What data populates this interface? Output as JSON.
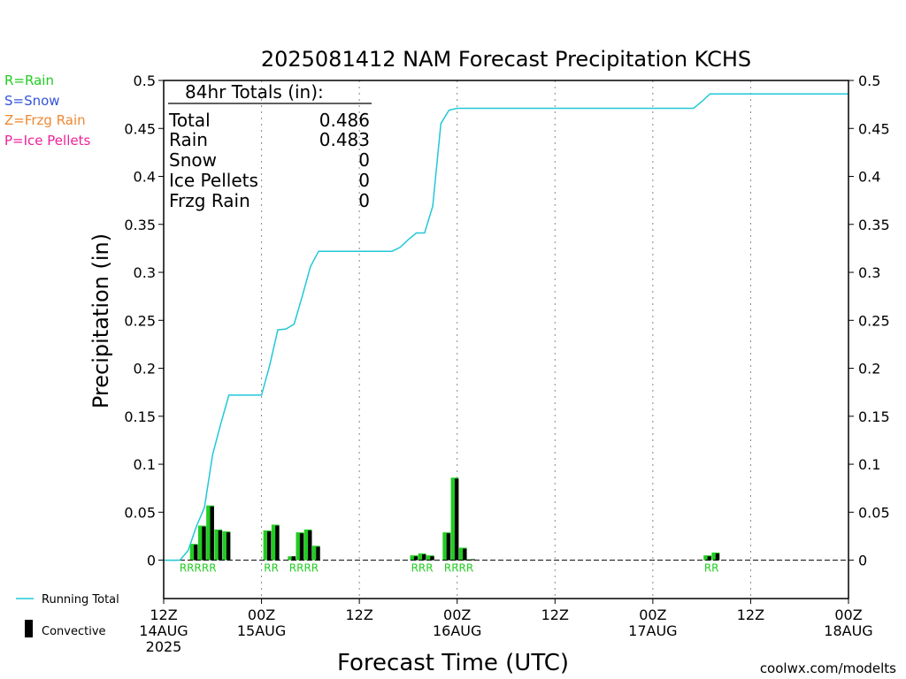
{
  "chart_data": {
    "type": "bar",
    "title": "2025081412 NAM Forecast Precipitation KCHS",
    "xlabel": "Forecast Time (UTC)",
    "ylabel": "Precipitation (in)",
    "ylim": [
      -0.04,
      0.5
    ],
    "y_ticks": [
      0,
      0.05,
      0.1,
      0.15,
      0.2,
      0.25,
      0.3,
      0.35,
      0.4,
      0.45,
      0.5
    ],
    "xlim_hours": [
      0,
      84
    ],
    "x_ticks": [
      {
        "hour": 0,
        "line1": "12Z",
        "line2": "14AUG",
        "line3": "2025"
      },
      {
        "hour": 12,
        "line1": "00Z",
        "line2": "15AUG",
        "line3": ""
      },
      {
        "hour": 24,
        "line1": "12Z",
        "line2": "",
        "line3": ""
      },
      {
        "hour": 36,
        "line1": "00Z",
        "line2": "16AUG",
        "line3": ""
      },
      {
        "hour": 48,
        "line1": "12Z",
        "line2": "",
        "line3": ""
      },
      {
        "hour": 60,
        "line1": "00Z",
        "line2": "17AUG",
        "line3": ""
      },
      {
        "hour": 72,
        "line1": "12Z",
        "line2": "",
        "line3": ""
      },
      {
        "hour": 84,
        "line1": "00Z",
        "line2": "18AUG",
        "line3": ""
      }
    ],
    "bars": [
      {
        "hour": 3.7,
        "total": 0.017,
        "convective": 0.016
      },
      {
        "hour": 4.7,
        "total": 0.036,
        "convective": 0.035
      },
      {
        "hour": 5.7,
        "total": 0.057,
        "convective": 0.056
      },
      {
        "hour": 6.7,
        "total": 0.032,
        "convective": 0.031
      },
      {
        "hour": 7.7,
        "total": 0.03,
        "convective": 0.029
      },
      {
        "hour": 12.7,
        "total": 0.031,
        "convective": 0.03
      },
      {
        "hour": 13.7,
        "total": 0.037,
        "convective": 0.036
      },
      {
        "hour": 15.7,
        "total": 0.004,
        "convective": 0.004
      },
      {
        "hour": 16.7,
        "total": 0.029,
        "convective": 0.028
      },
      {
        "hour": 17.7,
        "total": 0.032,
        "convective": 0.031
      },
      {
        "hour": 18.7,
        "total": 0.015,
        "convective": 0.014
      },
      {
        "hour": 30.7,
        "total": 0.005,
        "convective": 0.004
      },
      {
        "hour": 31.7,
        "total": 0.007,
        "convective": 0.006
      },
      {
        "hour": 32.7,
        "total": 0.005,
        "convective": 0.004
      },
      {
        "hour": 34.7,
        "total": 0.029,
        "convective": 0.028
      },
      {
        "hour": 35.7,
        "total": 0.086,
        "convective": 0.085
      },
      {
        "hour": 36.7,
        "total": 0.013,
        "convective": 0.012
      },
      {
        "hour": 37.7,
        "total": 0.001,
        "convective": 0.001
      },
      {
        "hour": 66.7,
        "total": 0.005,
        "convective": 0.004
      },
      {
        "hour": 67.7,
        "total": 0.008,
        "convective": 0.007
      }
    ],
    "running_total": {
      "x": [
        0,
        2,
        3,
        4,
        5,
        6,
        7,
        8,
        12,
        13,
        14,
        15,
        16,
        17,
        18,
        19,
        20,
        24,
        28,
        29,
        30,
        31,
        32,
        33,
        34,
        35,
        36,
        37,
        38,
        40,
        48,
        60,
        65,
        66,
        67,
        72,
        84
      ],
      "y": [
        0,
        0,
        0.01,
        0.035,
        0.055,
        0.11,
        0.142,
        0.172,
        0.172,
        0.203,
        0.24,
        0.241,
        0.246,
        0.275,
        0.306,
        0.322,
        0.322,
        0.322,
        0.322,
        0.326,
        0.334,
        0.341,
        0.341,
        0.369,
        0.455,
        0.469,
        0.471,
        0.471,
        0.471,
        0.471,
        0.471,
        0.471,
        0.471,
        0.478,
        0.486,
        0.486,
        0.486
      ]
    },
    "precip_type_labels": [
      {
        "hour": 4.2,
        "text": "RRRRR"
      },
      {
        "hour": 13.2,
        "text": "RR"
      },
      {
        "hour": 17.2,
        "text": "RRRR"
      },
      {
        "hour": 31.7,
        "text": "RRR"
      },
      {
        "hour": 36.2,
        "text": "RRRR"
      },
      {
        "hour": 67.2,
        "text": "RR"
      }
    ],
    "colors": {
      "running_total": "#22c8d8",
      "bar_green": "#22cc22",
      "bar_black": "#000000",
      "rain": "#22cc22",
      "snow": "#3355dd",
      "frzg_rain": "#ee8833",
      "ice_pellets": "#ee2299",
      "credit": "#dd2233"
    },
    "grid": "vertical dotted",
    "legend_position": "bottom-left"
  },
  "precip_type_legend": {
    "rain": "R=Rain",
    "snow": "S=Snow",
    "frzg_rain": "Z=Frzg Rain",
    "ice_pellets": "P=Ice Pellets"
  },
  "totals_box": {
    "heading": "84hr Totals (in):",
    "rows": [
      {
        "label": "Total",
        "value": "0.486"
      },
      {
        "label": "Rain",
        "value": "0.483"
      },
      {
        "label": "Snow",
        "value": "0"
      },
      {
        "label": "Ice Pellets",
        "value": "0"
      },
      {
        "label": "Frzg Rain",
        "value": "0"
      }
    ]
  },
  "series_legend": {
    "running_total": "Running Total",
    "convective": "Convective"
  },
  "credit": "coolwx.com/modelts"
}
